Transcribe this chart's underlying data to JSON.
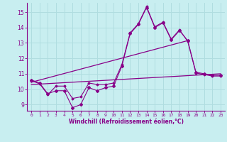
{
  "xlabel": "Windchill (Refroidissement éolien,°C)",
  "bg_color": "#c8eef0",
  "grid_color": "#b0dde0",
  "line_color": "#880088",
  "xlim": [
    -0.5,
    23.5
  ],
  "ylim": [
    8.6,
    15.6
  ],
  "yticks": [
    9,
    10,
    11,
    12,
    13,
    14,
    15
  ],
  "xticks": [
    0,
    1,
    2,
    3,
    4,
    5,
    6,
    7,
    8,
    9,
    10,
    11,
    12,
    13,
    14,
    15,
    16,
    17,
    18,
    19,
    20,
    21,
    22,
    23
  ],
  "series1_x": [
    0,
    1,
    2,
    3,
    4,
    5,
    6,
    7,
    8,
    9,
    10,
    11,
    12,
    13,
    14,
    15,
    16,
    17,
    18,
    19,
    20,
    21,
    22,
    23
  ],
  "series1_y": [
    10.6,
    10.4,
    9.7,
    9.9,
    9.9,
    8.8,
    9.0,
    10.1,
    9.9,
    10.1,
    10.2,
    11.5,
    13.6,
    14.2,
    15.3,
    14.0,
    14.3,
    13.2,
    13.8,
    13.15,
    11.1,
    11.0,
    10.9,
    10.9
  ],
  "series2_x": [
    0,
    1,
    2,
    3,
    4,
    5,
    6,
    7,
    8,
    9,
    10,
    11,
    12,
    13,
    14,
    15,
    16,
    17,
    18,
    19,
    20,
    21,
    22,
    23
  ],
  "series2_y": [
    10.55,
    10.35,
    9.65,
    10.2,
    10.2,
    9.4,
    9.5,
    10.4,
    10.3,
    10.3,
    10.4,
    11.6,
    13.65,
    14.25,
    15.35,
    14.05,
    14.35,
    13.25,
    13.85,
    13.1,
    11.05,
    10.95,
    10.85,
    10.85
  ],
  "trend1_x": [
    0,
    23
  ],
  "trend1_y": [
    10.3,
    11.0
  ],
  "trend2_x": [
    0,
    19
  ],
  "trend2_y": [
    10.45,
    13.15
  ]
}
